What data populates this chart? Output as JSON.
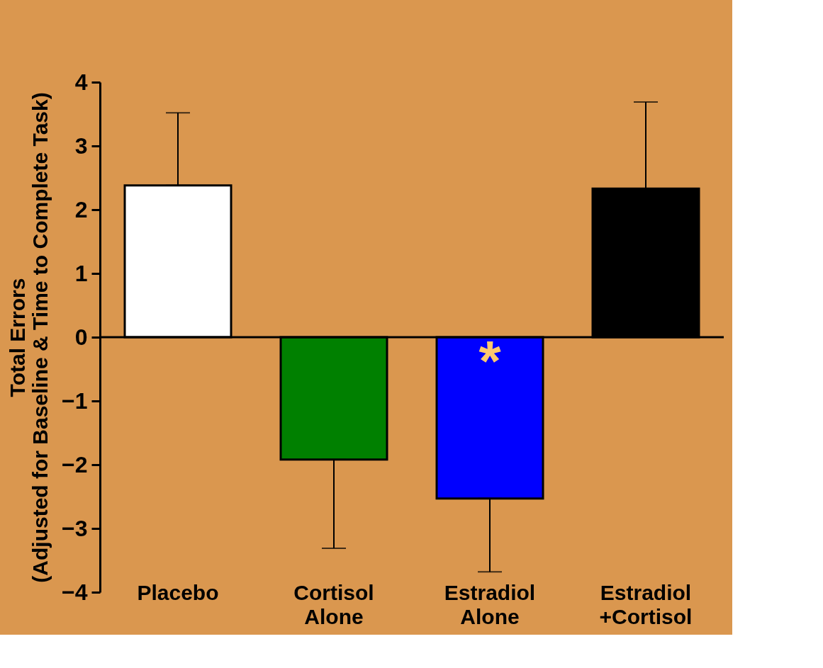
{
  "chart_data": {
    "type": "bar",
    "ylabel": "Total Errors\n(Adjusted for Baseline & Time to Complete Task)",
    "categories": [
      "Placebo",
      "Cortisol Alone",
      "Estradiol Alone",
      "Estradiol +Cortisol"
    ],
    "values": [
      2.38,
      -1.92,
      -2.53,
      2.33
    ],
    "colors": [
      "#ffffff",
      "#008000",
      "#0000ff",
      "#000000"
    ],
    "errors": [
      [
        2.38,
        3.52
      ],
      [
        -3.31,
        -1.92
      ],
      [
        -3.68,
        -2.53
      ],
      [
        2.33,
        3.69
      ]
    ],
    "ylim": [
      -4,
      4
    ],
    "yticks": [
      -4,
      -3,
      -2,
      -1,
      0,
      1,
      2,
      3,
      4
    ],
    "ref_lines": [
      {
        "axis": "y",
        "value": 0
      }
    ],
    "annotations": [
      {
        "text": "*",
        "x": "Estradiol Alone",
        "y": 0
      }
    ],
    "grid": false
  }
}
